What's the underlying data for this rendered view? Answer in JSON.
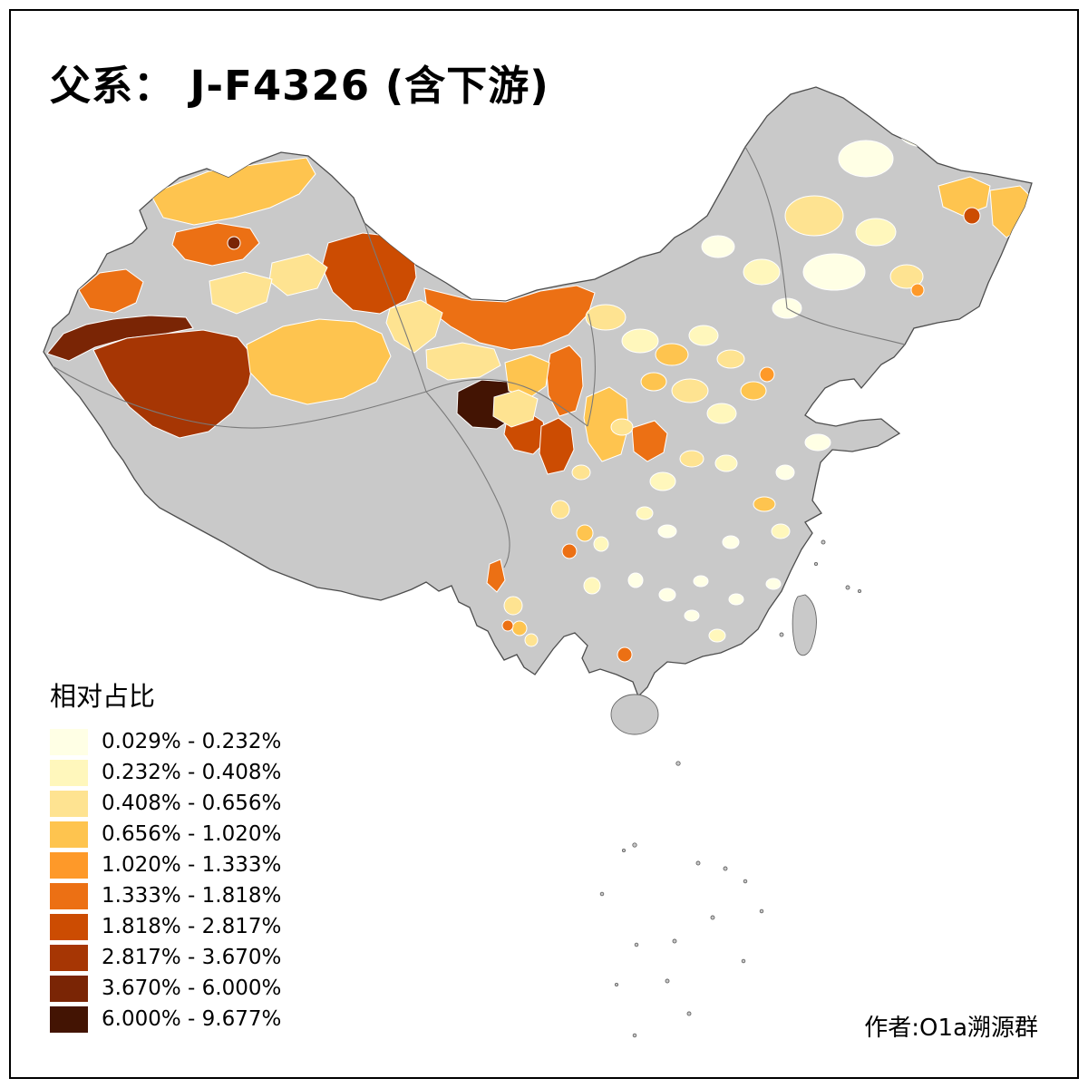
{
  "title": {
    "text": "父系：  J-F4326 (含下游)"
  },
  "legend": {
    "title": "相对占比",
    "items": [
      {
        "label": "0.029% - 0.232%",
        "color": "#FFFFE5"
      },
      {
        "label": "0.232% - 0.408%",
        "color": "#FFF7BC"
      },
      {
        "label": "0.408% - 0.656%",
        "color": "#FEE391"
      },
      {
        "label": "0.656% - 1.020%",
        "color": "#FEC44F"
      },
      {
        "label": "1.020% - 1.333%",
        "color": "#FE9929"
      },
      {
        "label": "1.333% - 1.818%",
        "color": "#EC7014"
      },
      {
        "label": "1.818% - 2.817%",
        "color": "#CC4C02"
      },
      {
        "label": "2.817% - 3.670%",
        "color": "#A63604"
      },
      {
        "label": "3.670% - 6.000%",
        "color": "#7A2505"
      },
      {
        "label": "6.000% - 9.677%",
        "color": "#431403"
      }
    ]
  },
  "credit": {
    "text": "作者:O1a溯源群"
  },
  "map": {
    "land_color": "#C9C9C9",
    "county_border_color": "#FFFFFF",
    "outline_color": "#4D4D4D",
    "province_border_color": "#7A7A7A"
  }
}
